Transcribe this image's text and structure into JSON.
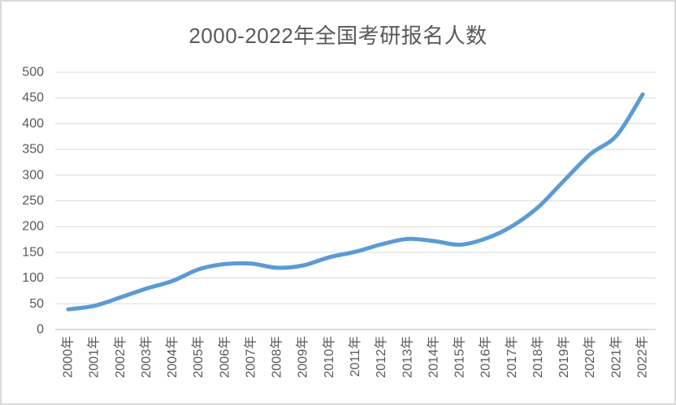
{
  "page": {
    "background": "#FFFFFF",
    "border_color": "#D9D9D9"
  },
  "chart_data": {
    "type": "line",
    "title": "2000-2022年全国考研报名人数",
    "categories": [
      "2000年",
      "2001年",
      "2002年",
      "2003年",
      "2004年",
      "2005年",
      "2006年",
      "2007年",
      "2008年",
      "2009年",
      "2010年",
      "2011年",
      "2012年",
      "2013年",
      "2014年",
      "2015年",
      "2016年",
      "2017年",
      "2018年",
      "2019年",
      "2020年",
      "2021年",
      "2022年"
    ],
    "values": [
      39.2,
      46,
      62.4,
      79.7,
      94.5,
      117.2,
      127.1,
      128.2,
      120,
      124.6,
      140.6,
      151.1,
      165.6,
      176,
      172,
      164.9,
      177,
      201,
      238,
      290,
      341,
      377,
      457
    ],
    "xlabel": "",
    "ylabel": "",
    "ylim": [
      0,
      500
    ],
    "ytick_interval": 50,
    "yticks": [
      0,
      50,
      100,
      150,
      200,
      250,
      300,
      350,
      400,
      450,
      500
    ],
    "grid": true,
    "legend_position": "none",
    "smoothed_line": true,
    "line_color": "#5B9BD5",
    "gridline_color": "#D9D9D9",
    "axis_line_color": "#BFBFBF",
    "text_color": "#595959",
    "title_color": "#595959"
  }
}
